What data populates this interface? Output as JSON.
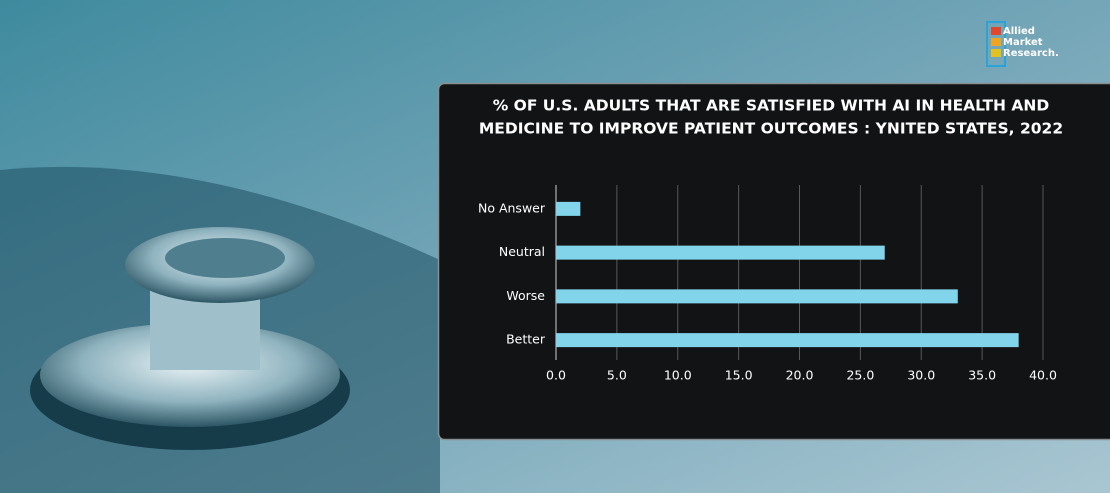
{
  "logo": [
    "Allied",
    "Market",
    "Research."
  ],
  "chart_data": {
    "type": "hbar",
    "title": [
      "% OF U.S. ADULTS THAT ARE SATISFIED WITH AI IN HEALTH AND",
      "MEDICINE TO IMPROVE PATIENT OUTCOMES : YNITED STATES, 2022"
    ],
    "categories": [
      "No Answer",
      "Neutral",
      "Worse",
      "Better"
    ],
    "values": [
      2,
      27,
      33,
      38
    ],
    "color": "#82d4ea",
    "xlim": [
      0,
      40
    ],
    "xticks": [
      {
        "value": 0,
        "label": "0.0"
      },
      {
        "value": 5,
        "label": "5.0"
      },
      {
        "value": 10,
        "label": "10.0"
      },
      {
        "value": 15,
        "label": "15.0"
      },
      {
        "value": 20,
        "label": "20.0"
      },
      {
        "value": 25,
        "label": "25.0"
      },
      {
        "value": 30,
        "label": "30.0"
      },
      {
        "value": 35,
        "label": "35.0"
      },
      {
        "value": 40,
        "label": "40.0"
      }
    ],
    "grid": true
  }
}
